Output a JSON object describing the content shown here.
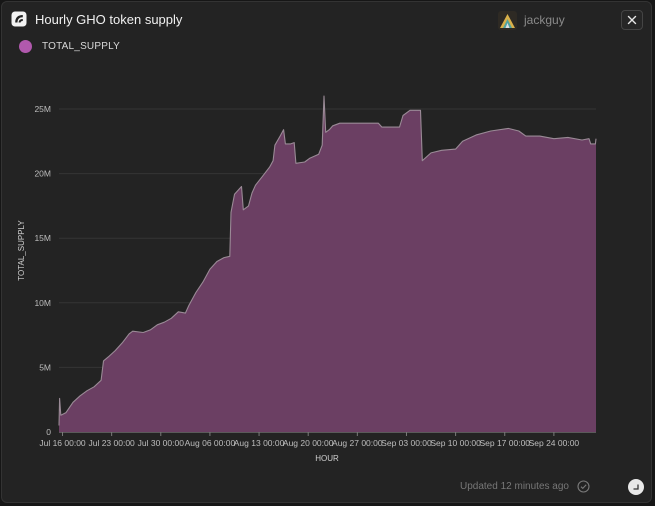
{
  "header": {
    "title": "Hourly GHO token supply",
    "username": "jackguy"
  },
  "footer": {
    "updated": "Updated 12 minutes ago"
  },
  "colors": {
    "area_fill": "#6b3f63",
    "area_stroke": "#9a8a96",
    "legend": "#b159ad",
    "background": "#232323"
  },
  "icons": {
    "app": "app-logo-icon",
    "close": "close-icon",
    "check": "check-circle-icon",
    "corner": "resize-icon"
  },
  "chart_data": {
    "type": "area",
    "legend": [
      "TOTAL_SUPPLY"
    ],
    "legend_position": "top-left",
    "xlabel": "HOUR",
    "ylabel": "TOTAL_SUPPLY",
    "grid": true,
    "ylim": [
      0,
      25000000
    ],
    "xlim": [
      "2023-07-15T12:00",
      "2023-09-30T00:00"
    ],
    "yticks": [
      {
        "value": 0,
        "label": "0"
      },
      {
        "value": 5000000,
        "label": "5M"
      },
      {
        "value": 10000000,
        "label": "10M"
      },
      {
        "value": 15000000,
        "label": "15M"
      },
      {
        "value": 20000000,
        "label": "20M"
      },
      {
        "value": 25000000,
        "label": "25M"
      }
    ],
    "xticks": [
      {
        "value": "2023-07-16T00:00",
        "label": "Jul 16 00:00"
      },
      {
        "value": "2023-07-23T00:00",
        "label": "Jul 23 00:00"
      },
      {
        "value": "2023-07-30T00:00",
        "label": "Jul 30 00:00"
      },
      {
        "value": "2023-08-06T00:00",
        "label": "Aug 06 00:00"
      },
      {
        "value": "2023-08-13T00:00",
        "label": "Aug 13 00:00"
      },
      {
        "value": "2023-08-20T00:00",
        "label": "Aug 20 00:00"
      },
      {
        "value": "2023-08-27T00:00",
        "label": "Aug 27 00:00"
      },
      {
        "value": "2023-09-03T00:00",
        "label": "Sep 03 00:00"
      },
      {
        "value": "2023-09-10T00:00",
        "label": "Sep 10 00:00"
      },
      {
        "value": "2023-09-17T00:00",
        "label": "Sep 17 00:00"
      },
      {
        "value": "2023-09-24T00:00",
        "label": "Sep 24 00:00"
      }
    ],
    "series": [
      {
        "name": "TOTAL_SUPPLY",
        "points": [
          [
            "2023-07-15T12:00",
            500000
          ],
          [
            "2023-07-15T14:00",
            2600000
          ],
          [
            "2023-07-15T18:00",
            1300000
          ],
          [
            "2023-07-16T12:00",
            1500000
          ],
          [
            "2023-07-17T12:00",
            2300000
          ],
          [
            "2023-07-18T12:00",
            2800000
          ],
          [
            "2023-07-19T12:00",
            3200000
          ],
          [
            "2023-07-20T12:00",
            3500000
          ],
          [
            "2023-07-21T12:00",
            4000000
          ],
          [
            "2023-07-21T20:00",
            5500000
          ],
          [
            "2023-07-22T12:00",
            5800000
          ],
          [
            "2023-07-23T12:00",
            6300000
          ],
          [
            "2023-07-24T12:00",
            6900000
          ],
          [
            "2023-07-25T12:00",
            7600000
          ],
          [
            "2023-07-26T00:00",
            7800000
          ],
          [
            "2023-07-27T12:00",
            7700000
          ],
          [
            "2023-07-28T12:00",
            7900000
          ],
          [
            "2023-07-29T12:00",
            8300000
          ],
          [
            "2023-07-30T12:00",
            8500000
          ],
          [
            "2023-07-31T12:00",
            8800000
          ],
          [
            "2023-08-01T12:00",
            9300000
          ],
          [
            "2023-08-02T12:00",
            9200000
          ],
          [
            "2023-08-03T00:00",
            9800000
          ],
          [
            "2023-08-04T00:00",
            10800000
          ],
          [
            "2023-08-05T00:00",
            11600000
          ],
          [
            "2023-08-06T00:00",
            12600000
          ],
          [
            "2023-08-07T00:00",
            13200000
          ],
          [
            "2023-08-08T00:00",
            13500000
          ],
          [
            "2023-08-08T20:00",
            13600000
          ],
          [
            "2023-08-09T00:00",
            17000000
          ],
          [
            "2023-08-09T12:00",
            18400000
          ],
          [
            "2023-08-10T12:00",
            19000000
          ],
          [
            "2023-08-10T18:00",
            17200000
          ],
          [
            "2023-08-11T12:00",
            17500000
          ],
          [
            "2023-08-12T00:00",
            18500000
          ],
          [
            "2023-08-12T12:00",
            19100000
          ],
          [
            "2023-08-13T12:00",
            19800000
          ],
          [
            "2023-08-14T12:00",
            20500000
          ],
          [
            "2023-08-15T00:00",
            21000000
          ],
          [
            "2023-08-15T06:00",
            22200000
          ],
          [
            "2023-08-16T00:00",
            22900000
          ],
          [
            "2023-08-16T12:00",
            23400000
          ],
          [
            "2023-08-16T18:00",
            22300000
          ],
          [
            "2023-08-17T12:00",
            22300000
          ],
          [
            "2023-08-18T00:00",
            22400000
          ],
          [
            "2023-08-18T06:00",
            20800000
          ],
          [
            "2023-08-19T12:00",
            20900000
          ],
          [
            "2023-08-20T06:00",
            21200000
          ],
          [
            "2023-08-21T12:00",
            21500000
          ],
          [
            "2023-08-22T00:00",
            22200000
          ],
          [
            "2023-08-22T06:00",
            26000000
          ],
          [
            "2023-08-22T12:00",
            23200000
          ],
          [
            "2023-08-23T00:00",
            23400000
          ],
          [
            "2023-08-23T12:00",
            23700000
          ],
          [
            "2023-08-24T12:00",
            23900000
          ],
          [
            "2023-08-26T00:00",
            23900000
          ],
          [
            "2023-08-28T00:00",
            23900000
          ],
          [
            "2023-08-30T00:00",
            23900000
          ],
          [
            "2023-08-30T12:00",
            23600000
          ],
          [
            "2023-09-02T00:00",
            23600000
          ],
          [
            "2023-09-02T12:00",
            24500000
          ],
          [
            "2023-09-03T12:00",
            24900000
          ],
          [
            "2023-09-05T00:00",
            24900000
          ],
          [
            "2023-09-05T06:00",
            21000000
          ],
          [
            "2023-09-06T12:00",
            21600000
          ],
          [
            "2023-09-08T00:00",
            21800000
          ],
          [
            "2023-09-10T00:00",
            21900000
          ],
          [
            "2023-09-11T00:00",
            22500000
          ],
          [
            "2023-09-13T00:00",
            23000000
          ],
          [
            "2023-09-15T00:00",
            23300000
          ],
          [
            "2023-09-17T12:00",
            23500000
          ],
          [
            "2023-09-19T00:00",
            23300000
          ],
          [
            "2023-09-20T00:00",
            22900000
          ],
          [
            "2023-09-22T00:00",
            22900000
          ],
          [
            "2023-09-24T00:00",
            22700000
          ],
          [
            "2023-09-26T00:00",
            22800000
          ],
          [
            "2023-09-28T00:00",
            22600000
          ],
          [
            "2023-09-29T00:00",
            22700000
          ],
          [
            "2023-09-29T06:00",
            22300000
          ],
          [
            "2023-09-29T22:00",
            22300000
          ],
          [
            "2023-09-30T00:00",
            22700000
          ]
        ]
      }
    ]
  }
}
